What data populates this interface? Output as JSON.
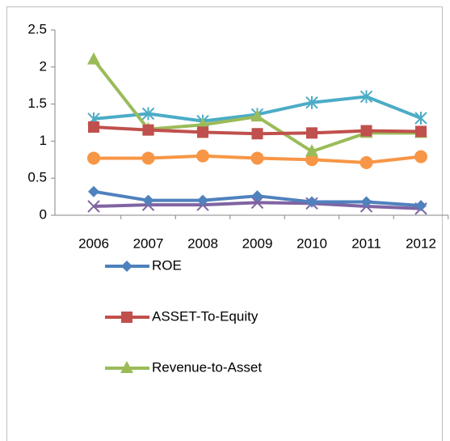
{
  "chart_data": {
    "type": "line",
    "categories": [
      "2006",
      "2007",
      "2008",
      "2009",
      "2010",
      "2011",
      "2012"
    ],
    "series": [
      {
        "name": "ROE",
        "color": "#4f81bd",
        "marker": "diamond",
        "values": [
          0.32,
          0.2,
          0.2,
          0.26,
          0.18,
          0.18,
          0.13
        ]
      },
      {
        "name": "ASSET-To-Equity",
        "color": "#c0504d",
        "marker": "square",
        "values": [
          1.19,
          1.15,
          1.12,
          1.1,
          1.11,
          1.14,
          1.13
        ]
      },
      {
        "name": "Revenue-to-Asset",
        "color": "#9bbb59",
        "marker": "triangle",
        "values": [
          2.1,
          1.16,
          1.22,
          1.33,
          0.86,
          1.11,
          1.11
        ]
      },
      {
        "color": "#8064a2",
        "marker": "x",
        "values": [
          0.12,
          0.14,
          0.14,
          0.17,
          0.16,
          0.12,
          0.09
        ]
      },
      {
        "color": "#4bacc6",
        "marker": "star",
        "values": [
          1.3,
          1.37,
          1.27,
          1.36,
          1.52,
          1.6,
          1.31
        ]
      },
      {
        "color": "#f79646",
        "marker": "circle",
        "values": [
          0.77,
          0.77,
          0.8,
          0.77,
          0.75,
          0.71,
          0.79
        ]
      }
    ],
    "ylim": [
      0,
      2.5
    ],
    "yticks": [
      0,
      0.5,
      1,
      1.5,
      2,
      2.5
    ],
    "grid": false
  }
}
